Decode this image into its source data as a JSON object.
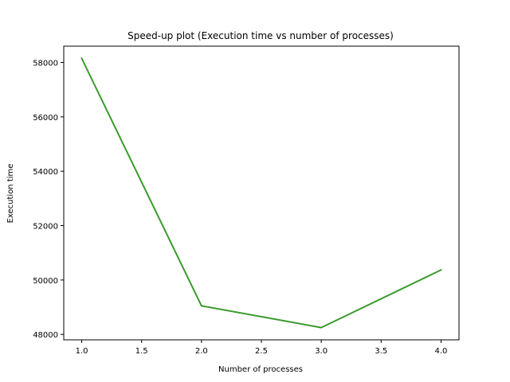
{
  "chart_data": {
    "type": "line",
    "title": "Speed-up plot (Execution time vs number of processes)",
    "xlabel": "Number of processes",
    "ylabel": "Execution time",
    "xlim": [
      0.85,
      4.15
    ],
    "ylim": [
      47800,
      58600
    ],
    "x_ticks": [
      "1.0",
      "1.5",
      "2.0",
      "2.5",
      "3.0",
      "3.5",
      "4.0"
    ],
    "y_ticks": [
      "48000",
      "50000",
      "52000",
      "54000",
      "56000",
      "58000"
    ],
    "grid": false,
    "series": [
      {
        "color": "#3a9a2c",
        "x": [
          1.0,
          2.0,
          3.0,
          4.0
        ],
        "y": [
          58150,
          49050,
          48250,
          50370
        ]
      }
    ]
  }
}
